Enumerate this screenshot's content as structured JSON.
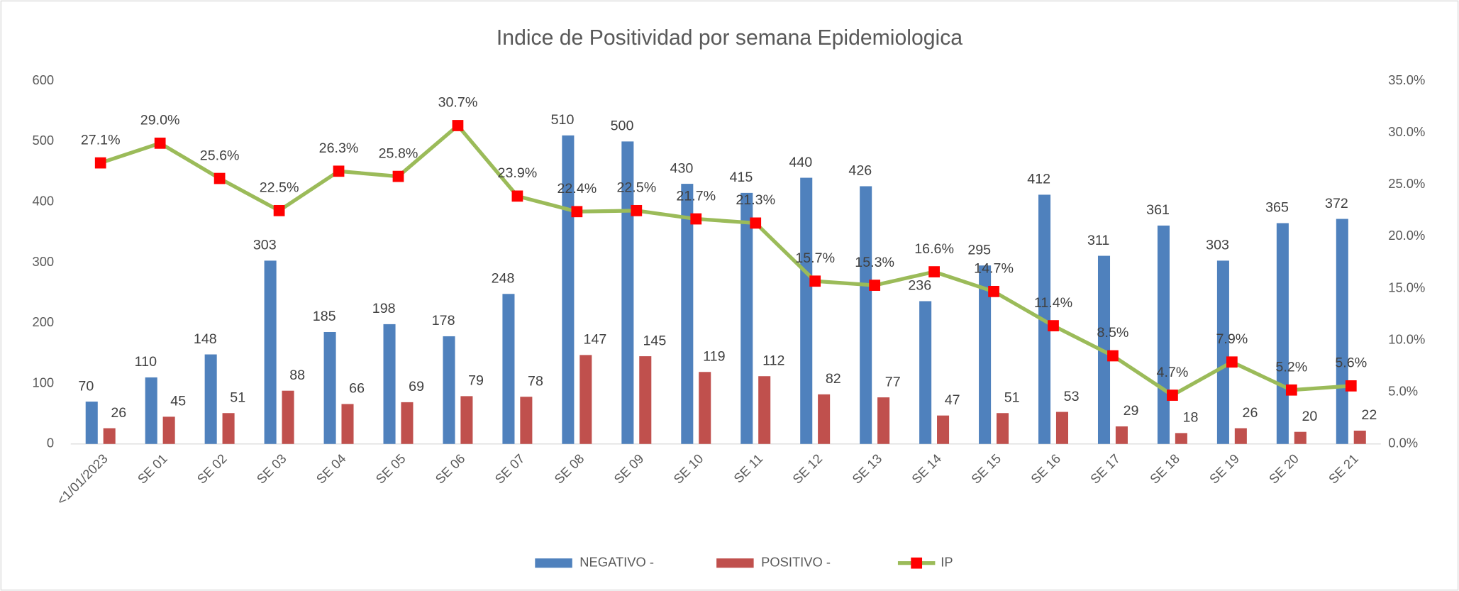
{
  "chart_data": {
    "type": "bar",
    "title": "Indice de Positividad por semana Epidemiologica",
    "categories": [
      "<1/01/2023",
      "SE 01",
      "SE 02",
      "SE 03",
      "SE 04",
      "SE 05",
      "SE 06",
      "SE 07",
      "SE 08",
      "SE 09",
      "SE 10",
      "SE 11",
      "SE 12",
      "SE 13",
      "SE 14",
      "SE 15",
      "SE 16",
      "SE 17",
      "SE 18",
      "SE 19",
      "SE 20",
      "SE 21"
    ],
    "series": [
      {
        "name": "NEGATIVO -",
        "color": "#4f81bd",
        "values": [
          70,
          110,
          148,
          303,
          185,
          198,
          178,
          248,
          510,
          500,
          430,
          415,
          440,
          426,
          236,
          295,
          412,
          311,
          361,
          303,
          365,
          372
        ]
      },
      {
        "name": "POSITIVO -",
        "color": "#c0504d",
        "values": [
          26,
          45,
          51,
          88,
          66,
          69,
          79,
          78,
          147,
          145,
          119,
          112,
          82,
          77,
          47,
          51,
          53,
          29,
          18,
          26,
          20,
          22
        ]
      },
      {
        "name": "IP",
        "type": "line",
        "axis": "y2",
        "color": "#9bbb59",
        "marker_color": "#ff0000",
        "values": [
          27.1,
          29.0,
          25.6,
          22.5,
          26.3,
          25.8,
          30.7,
          23.9,
          22.4,
          22.5,
          21.7,
          21.3,
          15.7,
          15.3,
          16.6,
          14.7,
          11.4,
          8.5,
          4.7,
          7.9,
          5.2,
          5.6
        ],
        "value_labels": [
          "27.1%",
          "29.0%",
          "25.6%",
          "22.5%",
          "26.3%",
          "25.8%",
          "30.7%",
          "23.9%",
          "22.4%",
          "22.5%",
          "21.7%",
          "21.3%",
          "15.7%",
          "15.3%",
          "16.6%",
          "14.7%",
          "11.4%",
          "8.5%",
          "4.7%",
          "7.9%",
          "5.2%",
          "5.6%"
        ]
      }
    ],
    "ylim": [
      0,
      600
    ],
    "yticks": [
      0,
      100,
      200,
      300,
      400,
      500,
      600
    ],
    "y2lim": [
      0,
      35
    ],
    "y2ticks": [
      {
        "value": 0,
        "label": "0.0%"
      },
      {
        "value": 5,
        "label": "5.0%"
      },
      {
        "value": 10,
        "label": "10.0%"
      },
      {
        "value": 15,
        "label": "15.0%"
      },
      {
        "value": 20,
        "label": "20.0%"
      },
      {
        "value": 25,
        "label": "25.0%"
      },
      {
        "value": 30,
        "label": "30.0%"
      },
      {
        "value": 35,
        "label": "35.0%"
      }
    ],
    "legend": "bottom"
  }
}
